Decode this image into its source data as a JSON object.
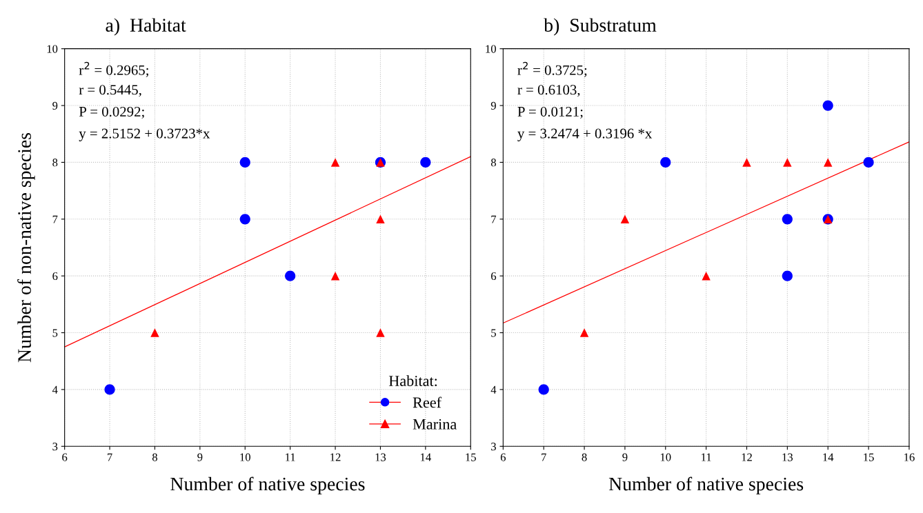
{
  "chart_data": [
    {
      "type": "scatter",
      "title": "a)  Habitat",
      "xlabel": "Number of native species",
      "ylabel": "Number of non-native species",
      "legend_title": "Habitat:",
      "legend": "bottom right",
      "grid": true,
      "xlim": [
        6,
        15
      ],
      "xticks": [
        6,
        7,
        8,
        9,
        10,
        11,
        12,
        13,
        14,
        15
      ],
      "ylim": [
        3,
        10
      ],
      "yticks": [
        3,
        4,
        5,
        6,
        7,
        8,
        9,
        10
      ],
      "annotations": [
        "r$^{2}$ = 0.2965;",
        "r = 0.5445,",
        "P = 0.0292;",
        "y = 2.5152 + 0.3723*x"
      ],
      "series": [
        {
          "name": "Reef",
          "color": "#0000ff",
          "marker": "circle",
          "x": [
            7,
            10,
            10,
            11,
            13,
            14
          ],
          "values": [
            4,
            8,
            7,
            6,
            8,
            8
          ]
        },
        {
          "name": "Marina",
          "color": "#ff0000",
          "marker": "triangle",
          "x": [
            8,
            12,
            12,
            13,
            13,
            13
          ],
          "values": [
            5,
            8,
            6,
            8,
            7,
            5
          ]
        },
        {
          "type": "line",
          "color": "#ff0000",
          "marker": "none",
          "x": [
            6,
            15
          ],
          "values": [
            4.75,
            8.1
          ]
        }
      ]
    },
    {
      "type": "scatter",
      "title": "b)  Substratum",
      "xlabel": "Number of native species",
      "grid": true,
      "xlim": [
        6,
        16
      ],
      "xticks": [
        6,
        7,
        8,
        9,
        10,
        11,
        12,
        13,
        14,
        15,
        16
      ],
      "ylim": [
        3,
        10
      ],
      "yticks": [
        3,
        4,
        5,
        6,
        7,
        8,
        9,
        10
      ],
      "annotations": [
        "r$^{2}$ = 0.3725;",
        "r = 0.6103,",
        "P = 0.0121;",
        "y = 3.2474 + 0.3196 *x"
      ],
      "series": [
        {
          "color": "#0000ff",
          "marker": "circle",
          "x": [
            7,
            10,
            13,
            13,
            14,
            14,
            15
          ],
          "values": [
            4,
            8,
            7,
            6,
            9,
            7,
            8
          ]
        },
        {
          "color": "#ff0000",
          "marker": "triangle",
          "x": [
            8,
            9,
            11,
            12,
            13,
            14,
            14
          ],
          "values": [
            5,
            7,
            6,
            8,
            8,
            8,
            7
          ]
        },
        {
          "type": "line",
          "color": "#ff0000",
          "marker": "none",
          "x": [
            6,
            16
          ],
          "values": [
            5.17,
            8.36
          ]
        }
      ]
    }
  ]
}
